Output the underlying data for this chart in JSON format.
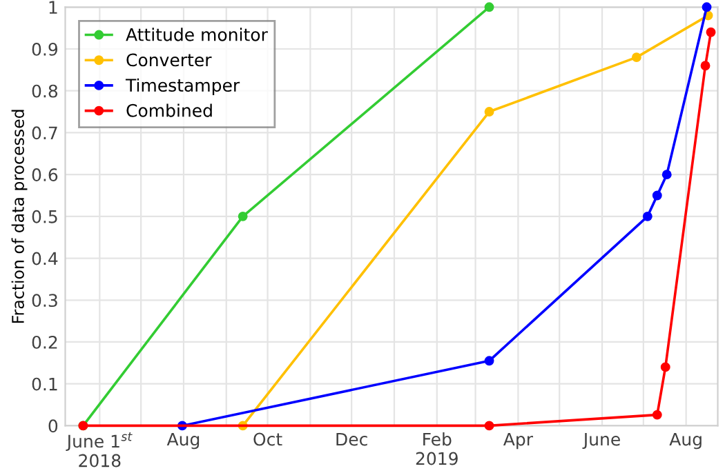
{
  "chart_data": {
    "type": "line",
    "ylabel": "Fraction of data processed",
    "series": [
      {
        "name": "Attitude monitor",
        "color": "#33cc33",
        "x": [
          "2018-05-20",
          "2018-09-13",
          "2019-03-11"
        ],
        "values": [
          0,
          0.5,
          1.0
        ]
      },
      {
        "name": "Converter",
        "color": "#ffc000",
        "x": [
          "2018-09-13",
          "2019-03-11",
          "2019-06-26",
          "2019-08-17"
        ],
        "values": [
          0,
          0.75,
          0.88,
          0.98
        ]
      },
      {
        "name": "Timestamper",
        "color": "#0000ff",
        "x": [
          "2018-07-31",
          "2019-03-11",
          "2019-07-04",
          "2019-07-11",
          "2019-07-18",
          "2019-08-16"
        ],
        "values": [
          0,
          0.155,
          0.5,
          0.55,
          0.6,
          1.0
        ]
      },
      {
        "name": "Combined",
        "color": "#ff0000",
        "x": [
          "2018-05-20",
          "2019-03-11",
          "2019-07-11",
          "2019-07-17",
          "2019-08-15",
          "2019-08-19"
        ],
        "values": [
          0,
          0,
          0.026,
          0.14,
          0.86,
          0.94
        ]
      }
    ],
    "xlim": [
      "2018-05-07",
      "2019-08-24"
    ],
    "xticks": [
      {
        "value": "2018-06-01",
        "label": "June 1$^{st}$\n2018"
      },
      {
        "value": "2018-07-01",
        "label": null
      },
      {
        "value": "2018-08-01",
        "label": "Aug"
      },
      {
        "value": "2018-09-01",
        "label": null
      },
      {
        "value": "2018-10-01",
        "label": "Oct"
      },
      {
        "value": "2018-11-01",
        "label": null
      },
      {
        "value": "2018-12-01",
        "label": "Dec"
      },
      {
        "value": "2019-01-01",
        "label": null
      },
      {
        "value": "2019-02-01",
        "label": "Feb\n2019"
      },
      {
        "value": "2019-03-01",
        "label": null
      },
      {
        "value": "2019-04-01",
        "label": "Apr"
      },
      {
        "value": "2019-05-01",
        "label": null
      },
      {
        "value": "2019-06-01",
        "label": "June"
      },
      {
        "value": "2019-07-01",
        "label": null
      },
      {
        "value": "2019-08-01",
        "label": "Aug"
      }
    ],
    "ylim": [
      0,
      1
    ],
    "yticks": [
      0,
      0.1,
      0.2,
      0.3,
      0.4,
      0.5,
      0.6,
      0.7,
      0.8,
      0.9,
      1
    ],
    "grid": true,
    "legend": "top left",
    "marker": "circle",
    "line_style": "solid"
  }
}
